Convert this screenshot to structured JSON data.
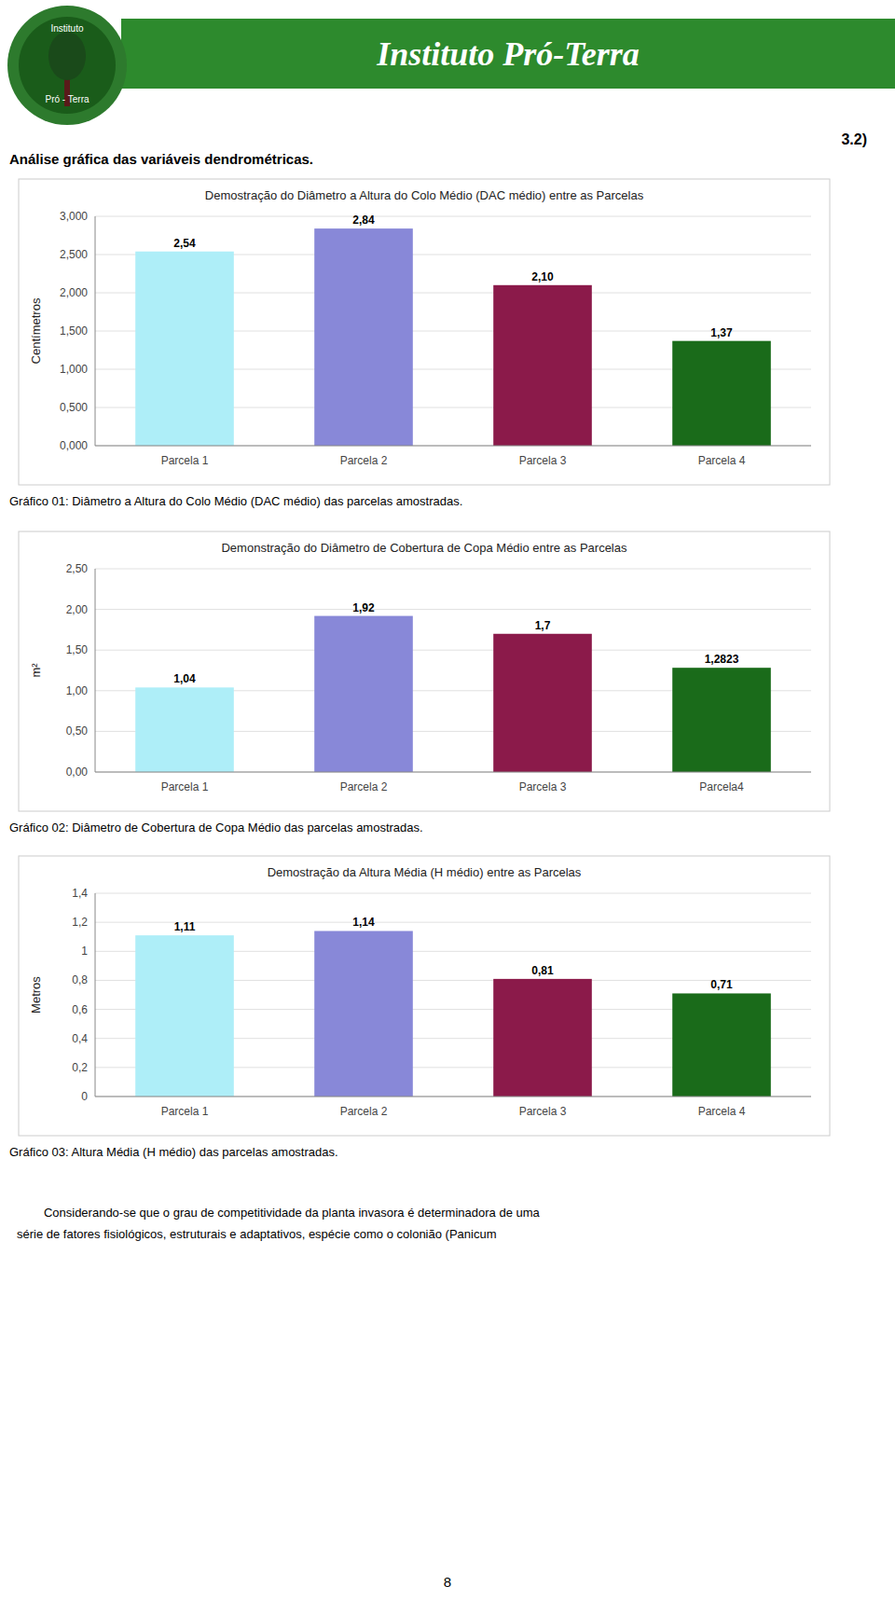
{
  "header_text": "Instituto Pró-Terra",
  "logo_text": [
    "Instituto",
    "Pró - Terra"
  ],
  "page_label": "3.2)",
  "section_title": "Análise gráfica das variáveis dendrométricas.",
  "footer_lines": [
    "        Considerando-se que o grau de competitividade da planta invasora é determinadora de uma",
    "série de fatores fisiológicos, estruturais e adaptativos, espécie como o colonião (Panicum"
  ],
  "page_number": "8",
  "chart_data": [
    {
      "type": "bar",
      "title": "Demostração do Diâmetro a Altura do Colo Médio (DAC médio) entre as Parcelas",
      "categories": [
        "Parcela 1",
        "Parcela 2",
        "Parcela 3",
        "Parcela 4"
      ],
      "values": [
        2.54,
        2.84,
        2.1,
        1.37
      ],
      "value_labels": [
        "2,54",
        "2,84",
        "2,10",
        "1,37"
      ],
      "colors": [
        "#aeeef8",
        "#8888d8",
        "#8b1a4a",
        "#1a6b1a"
      ],
      "ylabel": "Centímetros",
      "ylim": [
        0,
        3.0
      ],
      "yticks": [
        {
          "value": 0.0,
          "label": "0,000"
        },
        {
          "value": 0.5,
          "label": "0,500"
        },
        {
          "value": 1.0,
          "label": "1,000"
        },
        {
          "value": 1.5,
          "label": "1,500"
        },
        {
          "value": 2.0,
          "label": "2,000"
        },
        {
          "value": 2.5,
          "label": "2,500"
        },
        {
          "value": 3.0,
          "label": "3,000"
        }
      ],
      "grid": true,
      "data_labels": true,
      "caption": "Gráfico 01: Diâmetro a Altura do Colo Médio (DAC médio) das parcelas amostradas."
    },
    {
      "type": "bar",
      "title": "Demonstração do Diâmetro de Cobertura de Copa Médio entre as Parcelas",
      "categories": [
        "Parcela 1",
        "Parcela 2",
        "Parcela 3",
        "Parcela4"
      ],
      "values": [
        1.04,
        1.92,
        1.7,
        1.2823
      ],
      "value_labels": [
        "1,04",
        "1,92",
        "1,7",
        "1,2823"
      ],
      "colors": [
        "#aeeef8",
        "#8888d8",
        "#8b1a4a",
        "#1a6b1a"
      ],
      "ylabel": "m²",
      "ylim": [
        0,
        2.5
      ],
      "yticks": [
        {
          "value": 0.0,
          "label": "0,00"
        },
        {
          "value": 0.5,
          "label": "0,50"
        },
        {
          "value": 1.0,
          "label": "1,00"
        },
        {
          "value": 1.5,
          "label": "1,50"
        },
        {
          "value": 2.0,
          "label": "2,00"
        },
        {
          "value": 2.5,
          "label": "2,50"
        }
      ],
      "grid": true,
      "data_labels": true,
      "caption": "Gráfico 02: Diâmetro de Cobertura de Copa Médio das parcelas amostradas."
    },
    {
      "type": "bar",
      "title": "Demostração da Altura Média (H médio) entre as Parcelas",
      "categories": [
        "Parcela 1",
        "Parcela 2",
        "Parcela 3",
        "Parcela 4"
      ],
      "values": [
        1.11,
        1.14,
        0.81,
        0.71
      ],
      "value_labels": [
        "1,11",
        "1,14",
        "0,81",
        "0,71"
      ],
      "colors": [
        "#aeeef8",
        "#8888d8",
        "#8b1a4a",
        "#1a6b1a"
      ],
      "ylabel": "Metros",
      "ylim": [
        0,
        1.4
      ],
      "yticks": [
        0,
        {
          "value": 0.2,
          "label": "0,2"
        },
        {
          "value": 0.4,
          "label": "0,4"
        },
        {
          "value": 0.6,
          "label": "0,6"
        },
        {
          "value": 0.8,
          "label": "0,8"
        },
        1,
        {
          "value": 1.2,
          "label": "1,2"
        },
        {
          "value": 1.4,
          "label": "1,4"
        }
      ],
      "grid": true,
      "data_labels": true,
      "caption": "Gráfico 03: Altura Média (H médio) das parcelas amostradas."
    }
  ]
}
